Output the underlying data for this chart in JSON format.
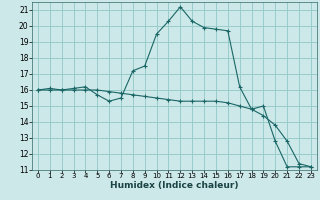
{
  "xlabel": "Humidex (Indice chaleur)",
  "bg_color": "#cce8e8",
  "grid_color": "#99cccc",
  "line_color": "#1a6666",
  "ylim": [
    11,
    21.5
  ],
  "xlim": [
    -0.5,
    23.5
  ],
  "yticks": [
    11,
    12,
    13,
    14,
    15,
    16,
    17,
    18,
    19,
    20,
    21
  ],
  "xticks": [
    0,
    1,
    2,
    3,
    4,
    5,
    6,
    7,
    8,
    9,
    10,
    11,
    12,
    13,
    14,
    15,
    16,
    17,
    18,
    19,
    20,
    21,
    22,
    23
  ],
  "curve1_x": [
    0,
    1,
    2,
    3,
    4,
    5,
    6,
    7,
    8,
    9,
    10,
    11,
    12,
    13,
    14,
    15,
    16,
    17,
    18,
    19,
    20,
    21,
    22,
    23
  ],
  "curve1_y": [
    16.0,
    16.1,
    16.0,
    16.1,
    16.2,
    15.7,
    15.3,
    15.5,
    17.2,
    17.5,
    19.5,
    20.3,
    21.2,
    20.3,
    19.9,
    19.8,
    19.7,
    16.2,
    14.8,
    15.0,
    12.8,
    11.2,
    11.2,
    11.2
  ],
  "curve2_x": [
    0,
    1,
    2,
    3,
    4,
    5,
    6,
    7,
    8,
    9,
    10,
    11,
    12,
    13,
    14,
    15,
    16,
    17,
    18,
    19,
    20,
    21,
    22,
    23
  ],
  "curve2_y": [
    16.0,
    16.0,
    16.0,
    16.0,
    16.0,
    16.0,
    15.9,
    15.8,
    15.7,
    15.6,
    15.5,
    15.4,
    15.3,
    15.3,
    15.3,
    15.3,
    15.2,
    15.0,
    14.8,
    14.4,
    13.8,
    12.8,
    11.4,
    11.2
  ]
}
